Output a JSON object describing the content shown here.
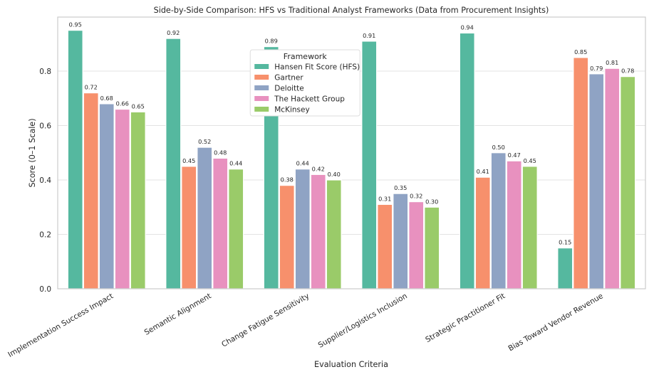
{
  "chart_data": {
    "type": "bar",
    "title": "Side-by-Side Comparison: HFS vs Traditional Analyst Frameworks (Data from Procurement Insights)",
    "xlabel": "Evaluation Criteria",
    "ylabel": "Score (0–1 Scale)",
    "ylim": [
      0,
      1.0
    ],
    "yticks": [
      "0.0",
      "0.2",
      "0.4",
      "0.6",
      "0.8"
    ],
    "ytick_values": [
      0,
      0.2,
      0.4,
      0.6,
      0.8
    ],
    "grid": true,
    "legend": {
      "title": "Framework",
      "placement": "top-center"
    },
    "categories": [
      "Implementation Success Impact",
      "Semantic Alignment",
      "Change Fatigue Sensitivity",
      "Supplier/Logistics Inclusion",
      "Strategic Practitioner Fit",
      "Bias Toward Vendor Revenue"
    ],
    "series": [
      {
        "name": "Hansen Fit Score (HFS)",
        "color": "#55b89f",
        "values": [
          0.95,
          0.92,
          0.89,
          0.91,
          0.94,
          0.15
        ],
        "labels": [
          "0.95",
          "0.92",
          "0.89",
          "0.91",
          "0.94",
          "0.15"
        ]
      },
      {
        "name": "Gartner",
        "color": "#f7906c",
        "values": [
          0.72,
          0.45,
          0.38,
          0.31,
          0.41,
          0.85
        ],
        "labels": [
          "0.72",
          "0.45",
          "0.38",
          "0.31",
          "0.41",
          "0.85"
        ]
      },
      {
        "name": "Deloitte",
        "color": "#8fa3c4",
        "values": [
          0.68,
          0.52,
          0.44,
          0.35,
          0.5,
          0.79
        ],
        "labels": [
          "0.68",
          "0.52",
          "0.44",
          "0.35",
          "0.50",
          "0.79"
        ]
      },
      {
        "name": "The Hackett Group",
        "color": "#e891bf",
        "values": [
          0.66,
          0.48,
          0.42,
          0.32,
          0.47,
          0.81
        ],
        "labels": [
          "0.66",
          "0.48",
          "0.42",
          "0.32",
          "0.47",
          "0.81"
        ]
      },
      {
        "name": "McKinsey",
        "color": "#9acb69",
        "values": [
          0.65,
          0.44,
          0.4,
          0.3,
          0.45,
          0.78
        ],
        "labels": [
          "0.65",
          "0.44",
          "0.40",
          "0.30",
          "0.45",
          "0.78"
        ]
      }
    ]
  }
}
